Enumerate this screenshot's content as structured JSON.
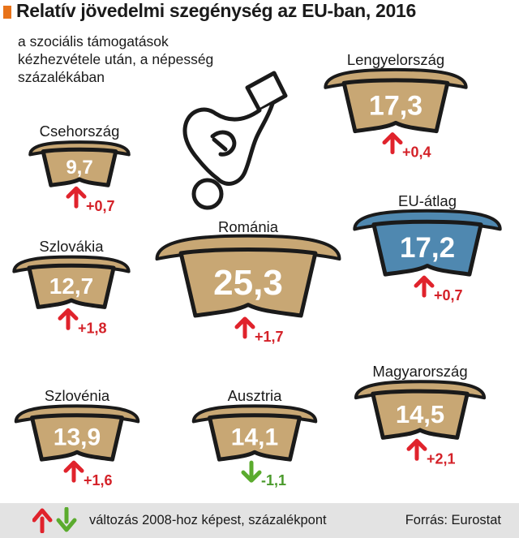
{
  "header": {
    "title": "Relatív jövedelmi szegénység az EU-ban, 2016",
    "subtitle": "a szociális támogatások\nkézhezvétele után, a népesség\nszázalékában"
  },
  "footer": {
    "legend": "változás 2008-hoz képest, százalékpont",
    "source": "Forrás: Eurostat"
  },
  "colors": {
    "bowl_brown": "#c8a774",
    "bowl_blue": "#4f88b0",
    "outline": "#1a1a1a",
    "up_arrow": "#e0232c",
    "down_arrow": "#5bab2e",
    "change_up_text": "#d42128",
    "change_down_text": "#4a9a2b",
    "accent": "#e8731a"
  },
  "icons": [
    "hand-dropping-coin-icon",
    "up-arrow-icon",
    "down-arrow-icon"
  ],
  "chart_data": {
    "type": "pictogram",
    "unit": "százalék",
    "items": [
      {
        "country": "Csehország",
        "value": 9.7,
        "value_label": "9,7",
        "change": 0.7,
        "change_label": "+0,7"
      },
      {
        "country": "Szlovákia",
        "value": 12.7,
        "value_label": "12,7",
        "change": 1.8,
        "change_label": "+1,8"
      },
      {
        "country": "Szlovénia",
        "value": 13.9,
        "value_label": "13,9",
        "change": 1.6,
        "change_label": "+1,6"
      },
      {
        "country": "Románia",
        "value": 25.3,
        "value_label": "25,3",
        "change": 1.7,
        "change_label": "+1,7"
      },
      {
        "country": "Ausztria",
        "value": 14.1,
        "value_label": "14,1",
        "change": -1.1,
        "change_label": "-1,1"
      },
      {
        "country": "Lengyelország",
        "value": 17.3,
        "value_label": "17,3",
        "change": 0.4,
        "change_label": "+0,4"
      },
      {
        "country": "EU-átlag",
        "value": 17.2,
        "value_label": "17,2",
        "change": 0.7,
        "change_label": "+0,7",
        "highlight": true
      },
      {
        "country": "Magyarország",
        "value": 14.5,
        "value_label": "14,5",
        "change": 2.1,
        "change_label": "+2,1"
      }
    ]
  }
}
